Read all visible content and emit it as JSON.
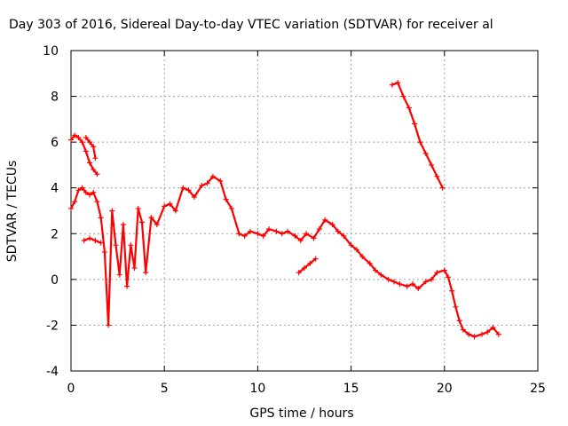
{
  "chart_data": {
    "type": "scatter",
    "title": "Day 303 of 2016, Sidereal Day-to-day VTEC variation (SDTVAR) for receiver al",
    "xlabel": "GPS time / hours",
    "ylabel": "SDTVAR / TECUs",
    "xlim": [
      0,
      25
    ],
    "ylim": [
      -4,
      10
    ],
    "xticks": [
      0,
      5,
      10,
      15,
      20,
      25
    ],
    "yticks": [
      -4,
      -2,
      0,
      2,
      4,
      6,
      8,
      10
    ],
    "xtick_labels": [
      "0",
      "5",
      "10",
      "15",
      "20",
      "25"
    ],
    "ytick_labels": [
      "-4",
      "-2",
      "0",
      "2",
      "4",
      "6",
      "8",
      "10"
    ],
    "grid": true,
    "marker": "+",
    "marker_color": "#ff0000",
    "series": [
      {
        "name": "main",
        "x": [
          0.0,
          0.2,
          0.4,
          0.6,
          0.8,
          1.0,
          1.2,
          1.4,
          1.6,
          1.8,
          2.0,
          2.2,
          2.4,
          2.6,
          2.8,
          3.0,
          3.2,
          3.4,
          3.6,
          3.8,
          4.0,
          4.3,
          4.6,
          5.0,
          5.3,
          5.6,
          6.0,
          6.3,
          6.6,
          7.0,
          7.3,
          7.6,
          8.0,
          8.3,
          8.6,
          9.0,
          9.3,
          9.6,
          10.0,
          10.3,
          10.6,
          11.0,
          11.3,
          11.6,
          12.0,
          12.3,
          12.6,
          13.0,
          13.3,
          13.6,
          14.0,
          14.3,
          14.6,
          15.0,
          15.3,
          15.6,
          16.0,
          16.3,
          16.6,
          17.0,
          17.3,
          17.6,
          18.0,
          18.3,
          18.6,
          19.0,
          19.3,
          19.6,
          20.0,
          20.2,
          20.4,
          20.6,
          20.8,
          21.0,
          21.3,
          21.6,
          22.0,
          22.3,
          22.6,
          22.9
        ],
        "y": [
          3.1,
          3.4,
          3.9,
          4.0,
          3.8,
          3.7,
          3.8,
          3.4,
          2.7,
          1.2,
          -2.0,
          3.0,
          1.5,
          0.2,
          2.4,
          -0.3,
          1.5,
          0.5,
          3.1,
          2.5,
          0.3,
          2.7,
          2.4,
          3.2,
          3.3,
          3.0,
          4.0,
          3.9,
          3.6,
          4.1,
          4.2,
          4.5,
          4.3,
          3.5,
          3.1,
          2.0,
          1.9,
          2.1,
          2.0,
          1.9,
          2.2,
          2.1,
          2.0,
          2.1,
          1.9,
          1.7,
          2.0,
          1.8,
          2.2,
          2.6,
          2.4,
          2.1,
          1.9,
          1.5,
          1.3,
          1.0,
          0.7,
          0.4,
          0.2,
          0.0,
          -0.1,
          -0.2,
          -0.3,
          -0.2,
          -0.4,
          -0.1,
          0.0,
          0.3,
          0.4,
          0.1,
          -0.5,
          -1.2,
          -1.8,
          -2.2,
          -2.4,
          -2.5,
          -2.4,
          -2.3,
          -2.1,
          -2.4
        ]
      },
      {
        "name": "upper-early",
        "x": [
          0.0,
          0.2,
          0.4,
          0.6,
          0.8,
          1.0,
          1.2,
          1.4
        ],
        "y": [
          6.1,
          6.3,
          6.2,
          6.0,
          5.6,
          5.1,
          4.8,
          4.6
        ]
      },
      {
        "name": "upper-early-b",
        "x": [
          0.8,
          1.0,
          1.2,
          1.3
        ],
        "y": [
          6.2,
          6.0,
          5.8,
          5.3
        ]
      },
      {
        "name": "low-branch-1",
        "x": [
          0.7,
          1.0,
          1.3,
          1.6
        ],
        "y": [
          1.7,
          1.8,
          1.7,
          1.6
        ]
      },
      {
        "name": "low-branch-2",
        "x": [
          12.2,
          12.5,
          12.8,
          13.1
        ],
        "y": [
          0.3,
          0.5,
          0.7,
          0.9
        ]
      },
      {
        "name": "late-upper",
        "x": [
          17.2,
          17.5,
          17.8,
          18.1,
          18.4,
          18.7,
          19.0,
          19.3,
          19.6,
          19.9
        ],
        "y": [
          8.5,
          8.6,
          8.0,
          7.5,
          6.8,
          6.0,
          5.5,
          5.0,
          4.5,
          4.0
        ]
      }
    ]
  }
}
